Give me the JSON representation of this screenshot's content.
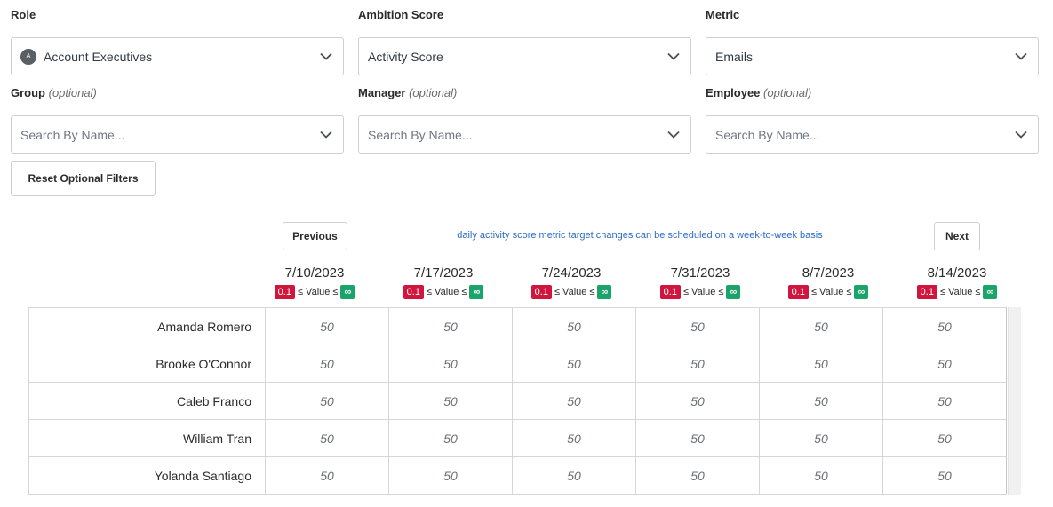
{
  "filters": {
    "role": {
      "label": "Role",
      "value": "Account Executives",
      "avatar_initial": "A"
    },
    "ambition": {
      "label": "Ambition Score",
      "value": "Activity Score"
    },
    "metric": {
      "label": "Metric",
      "value": "Emails"
    },
    "group": {
      "label": "Group",
      "optional": "(optional)",
      "placeholder": "Search By Name..."
    },
    "manager": {
      "label": "Manager",
      "optional": "(optional)",
      "placeholder": "Search By Name..."
    },
    "employee": {
      "label": "Employee",
      "optional": "(optional)",
      "placeholder": "Search By Name..."
    }
  },
  "reset_button": "Reset Optional Filters",
  "pager": {
    "previous": "Previous",
    "next": "Next",
    "note": "daily activity score metric target changes can be scheduled on a week-to-week basis"
  },
  "columns": [
    {
      "date": "7/10/2023",
      "min": "0.1",
      "mid": "≤ Value ≤",
      "max": "∞"
    },
    {
      "date": "7/17/2023",
      "min": "0.1",
      "mid": "≤ Value ≤",
      "max": "∞"
    },
    {
      "date": "7/24/2023",
      "min": "0.1",
      "mid": "≤ Value ≤",
      "max": "∞"
    },
    {
      "date": "7/31/2023",
      "min": "0.1",
      "mid": "≤ Value ≤",
      "max": "∞"
    },
    {
      "date": "8/7/2023",
      "min": "0.1",
      "mid": "≤ Value ≤",
      "max": "∞"
    },
    {
      "date": "8/14/2023",
      "min": "0.1",
      "mid": "≤ Value ≤",
      "max": "∞"
    }
  ],
  "rows": [
    {
      "name": "Amanda Romero",
      "values": [
        "50",
        "50",
        "50",
        "50",
        "50",
        "50"
      ]
    },
    {
      "name": "Brooke O'Connor",
      "values": [
        "50",
        "50",
        "50",
        "50",
        "50",
        "50"
      ]
    },
    {
      "name": "Caleb Franco",
      "values": [
        "50",
        "50",
        "50",
        "50",
        "50",
        "50"
      ]
    },
    {
      "name": "William Tran",
      "values": [
        "50",
        "50",
        "50",
        "50",
        "50",
        "50"
      ]
    },
    {
      "name": "Yolanda Santiago",
      "values": [
        "50",
        "50",
        "50",
        "50",
        "50",
        "50"
      ]
    }
  ]
}
